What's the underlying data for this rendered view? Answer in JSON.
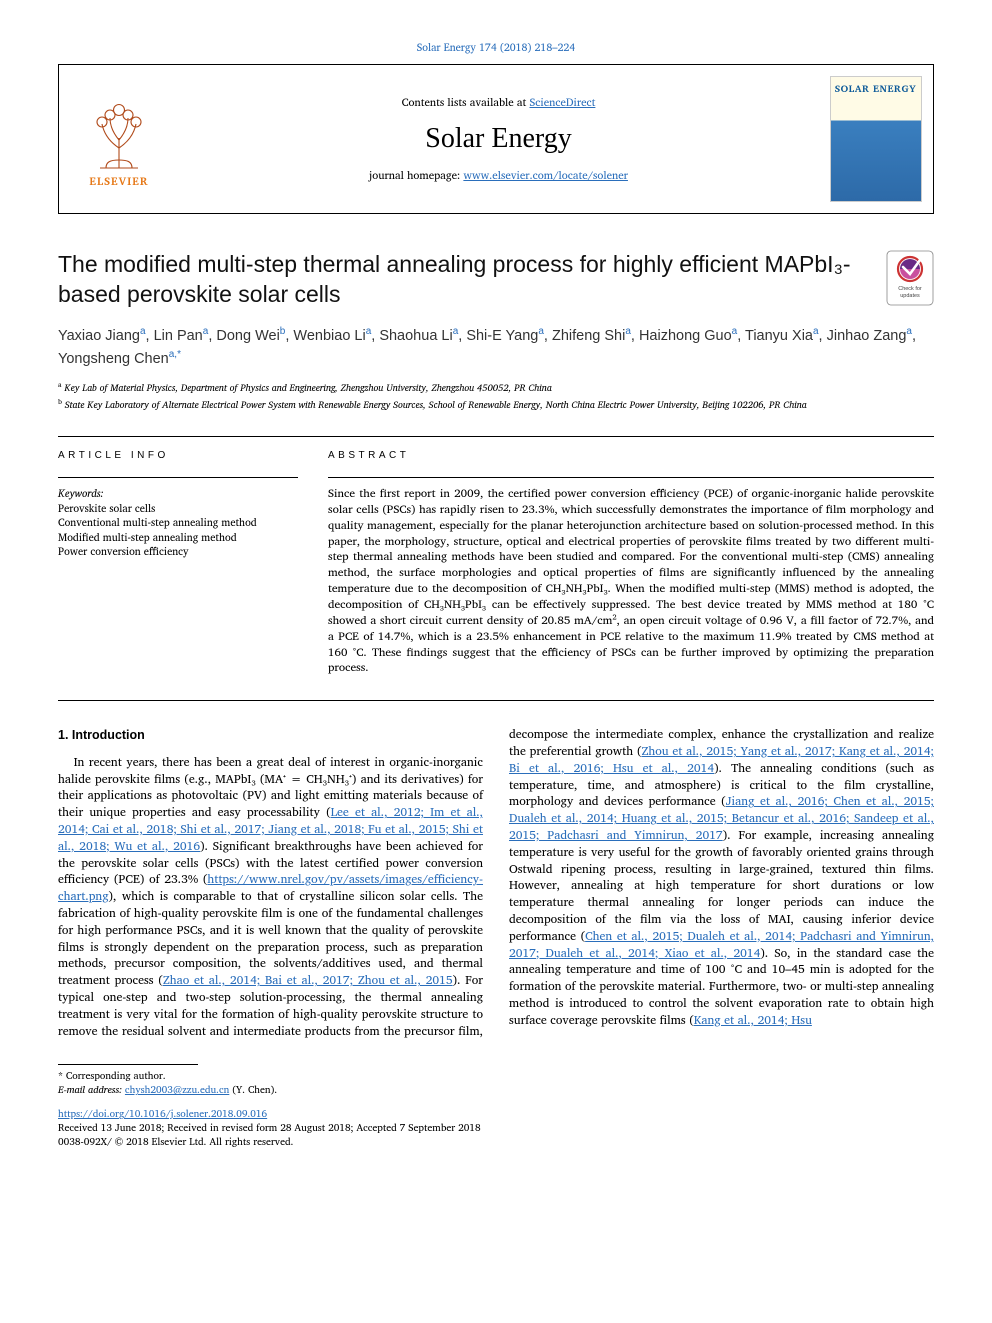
{
  "top_link": {
    "text": "Solar Energy 174 (2018) 218–224",
    "href": "#"
  },
  "header": {
    "contents_prefix": "Contents lists available at ",
    "contents_link": "ScienceDirect",
    "journal": "Solar Energy",
    "homepage_prefix": "journal homepage: ",
    "homepage_link": "www.elsevier.com/locate/solener",
    "publisher_name": "ELSEVIER",
    "cover_title": "SOLAR ENERGY"
  },
  "title": "The modified multi-step thermal annealing process for highly efficient MAPbI₃-based perovskite solar cells",
  "check_badge_caption": "Check for updates",
  "authors": [
    {
      "name": "Yaxiao Jiang",
      "mark": "a"
    },
    {
      "name": "Lin Pan",
      "mark": "a"
    },
    {
      "name": "Dong Wei",
      "mark": "b"
    },
    {
      "name": "Wenbiao Li",
      "mark": "a"
    },
    {
      "name": "Shaohua Li",
      "mark": "a"
    },
    {
      "name": "Shi-E Yang",
      "mark": "a"
    },
    {
      "name": "Zhifeng Shi",
      "mark": "a"
    },
    {
      "name": "Haizhong Guo",
      "mark": "a"
    },
    {
      "name": "Tianyu Xia",
      "mark": "a"
    },
    {
      "name": "Jinhao Zang",
      "mark": "a"
    },
    {
      "name": "Yongsheng Chen",
      "mark": "a,*"
    }
  ],
  "affiliations": [
    {
      "mark": "a",
      "text": "Key Lab of Material Physics, Department of Physics and Engineering, Zhengzhou University, Zhengzhou 450052, PR China"
    },
    {
      "mark": "b",
      "text": "State Key Laboratory of Alternate Electrical Power System with Renewable Energy Sources, School of Renewable Energy, North China Electric Power University, Beijing 102206, PR China"
    }
  ],
  "article_info_label": "ARTICLE INFO",
  "abstract_label": "ABSTRACT",
  "keywords_head": "Keywords:",
  "keywords": [
    "Perovskite solar cells",
    "Conventional multi-step annealing method",
    "Modified multi-step annealing method",
    "Power conversion efficiency"
  ],
  "abstract": "Since the first report in 2009, the certified power conversion efficiency (PCE) of organic-inorganic halide perovskite solar cells (PSCs) has rapidly risen to 23.3%, which successfully demonstrates the importance of film morphology and quality management, especially for the planar heterojunction architecture based on solution-processed method. In this paper, the morphology, structure, optical and electrical properties of perovskite films treated by two different multi-step thermal annealing methods have been studied and compared. For the conventional multi-step (CMS) annealing method, the surface morphologies and optical properties of films are significantly influenced by the annealing temperature due to the decomposition of CH₃NH₃PbI₃. When the modified multi-step (MMS) method is adopted, the decomposition of CH₃NH₃PbI₃ can be effectively suppressed. The best device treated by MMS method at 180 °C showed a short circuit current density of 20.85 mA/cm², an open circuit voltage of 0.96 V, a fill factor of 72.7%, and a PCE of 14.7%, which is a 23.5% enhancement in PCE relative to the maximum 11.9% treated by CMS method at 160 °C. These findings suggest that the efficiency of PSCs can be further improved by optimizing the preparation process.",
  "intro_heading": "1. Introduction",
  "intro_para_1a": "In recent years, there has been a great deal of interest in organic-inorganic halide perovskite films (e.g., MAPbI₃ (MA⁺ = CH₃NH₃⁺) and its derivatives) for their applications as photovoltaic (PV) and light emitting materials because of their unique properties and easy processability (",
  "intro_link_1": "Lee et al., 2012; Im et al., 2014; Cai et al., 2018; Shi et al., 2017; Jiang et al., 2018; Fu et al., 2015; Shi et al., 2018; Wu et al., 2016",
  "intro_para_1b": "). Significant breakthroughs have been achieved for the perovskite solar cells (PSCs) with the latest certified power conversion efficiency (PCE) of 23.3% (",
  "intro_link_2": "https://www.nrel.gov/pv/assets/images/efficiency-chart.png",
  "intro_para_1c": "), which is comparable to that of crystalline silicon solar cells. The fabrication of high-quality perovskite film is one of the fundamental challenges for high performance PSCs, and it is well known that the quality of perovskite films is strongly dependent on the preparation process, such as preparation methods, precursor composition, the solvents/additives used, and thermal treatment process (",
  "intro_link_3": "Zhao et al., 2014; Bai et al., 2017; Zhou et al., 2015",
  "intro_para_1d": "). For typical one-step and two-step solution-processing, the thermal annealing treatment is very vital for the formation of high-quality perovskite structure to remove the residual solvent and intermediate products from the precursor film, decompose the intermediate complex, enhance the crystallization and realize the preferential growth (",
  "intro_link_4": "Zhou et al., 2015; Yang et al., 2017; Kang et al., 2014; Bi et al., 2016; Hsu et al., 2014",
  "intro_para_1e": "). The annealing conditions (such as temperature, time, and atmosphere) is critical to the film crystalline, morphology and devices performance (",
  "intro_link_5": "Jiang et al., 2016; Chen et al., 2015; Dualeh et al., 2014; Huang et al., 2015; Betancur et al., 2016; Sandeep et al., 2015; Padchasri and Yimnirun, 2017",
  "intro_para_1f": "). For example, increasing annealing temperature is very useful for the growth of favorably oriented grains through Ostwald ripening process, resulting in large-grained, textured thin films. However, annealing at high temperature for short durations or low temperature thermal annealing for longer periods can induce the decomposition of the film via the loss of MAI, causing inferior device performance (",
  "intro_link_6": "Chen et al., 2015; Dualeh et al., 2014; Padchasri and Yimnirun, 2017; Dualeh et al., 2014; Xiao et al., 2014",
  "intro_para_1g": "). So, in the standard case the annealing temperature and time of 100 °C and 10–45 min is adopted for the formation of the perovskite material. Furthermore, two- or multi-step annealing method is introduced to control the solvent evaporation rate to obtain high surface coverage perovskite films (",
  "intro_link_7": "Kang et al., 2014; Hsu",
  "corr_author_label": "* Corresponding author.",
  "email_label": "E-mail address: ",
  "email": "chysh2003@zzu.edu.cn",
  "email_owner": " (Y. Chen).",
  "doi": "https://doi.org/10.1016/j.solener.2018.09.016",
  "received_line": "Received 13 June 2018; Received in revised form 28 August 2018; Accepted 7 September 2018",
  "issn_line": "0038-092X/ © 2018 Elsevier Ltd. All rights reserved.",
  "colors": {
    "link": "#2a6ebb",
    "elsevier_orange": "#e67817",
    "elsevier_tree": "#b04a1a"
  }
}
